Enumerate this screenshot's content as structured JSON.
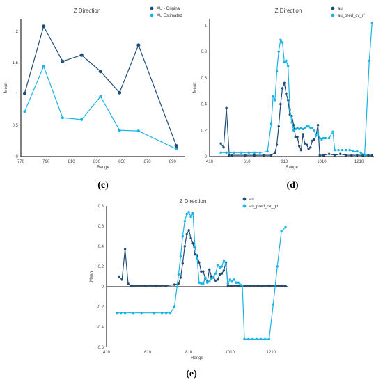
{
  "colors": {
    "dark": "#1f4e79",
    "light": "#19b3e6",
    "axis": "#000000",
    "text": "#404040"
  },
  "chart_data": [
    {
      "label": "(c)",
      "type": "line",
      "title": "Z Direction",
      "xlabel": "Range",
      "ylabel": "Mean",
      "xlim": [
        770,
        900
      ],
      "ylim": [
        0,
        2.2
      ],
      "xticks": [
        770,
        790,
        810,
        830,
        850,
        870,
        890
      ],
      "yticks": [
        0,
        0.5,
        1,
        1.5,
        2
      ],
      "ytick_labels": [
        "0",
        "0.5",
        "1",
        "1.5",
        "2"
      ],
      "legend_position": "top-right",
      "series": [
        {
          "name": "AU - Original",
          "color": "dark",
          "marker_size": 2.6,
          "points": [
            [
              773,
              1.01
            ],
            [
              788,
              2.08
            ],
            [
              803,
              1.52
            ],
            [
              818,
              1.62
            ],
            [
              833,
              1.36
            ],
            [
              848,
              1.02
            ],
            [
              863,
              1.78
            ],
            [
              893,
              0.17
            ]
          ]
        },
        {
          "name": "AU Estimated",
          "color": "light",
          "marker_size": 2.0,
          "points": [
            [
              773,
              0.72
            ],
            [
              788,
              1.44
            ],
            [
              803,
              0.62
            ],
            [
              818,
              0.59
            ],
            [
              833,
              0.96
            ],
            [
              848,
              0.42
            ],
            [
              863,
              0.41
            ],
            [
              893,
              0.12
            ]
          ]
        }
      ]
    },
    {
      "label": "(d)",
      "type": "line",
      "title": "Z Direction",
      "xlabel": "Range",
      "ylabel": "Mean",
      "xlim": [
        410,
        1290
      ],
      "ylim": [
        0,
        1.05
      ],
      "xticks": [
        410,
        610,
        810,
        1010,
        1210
      ],
      "yticks": [
        0,
        0.2,
        0.4,
        0.6,
        0.8,
        1
      ],
      "ytick_labels": [
        "0",
        "0.2",
        "0.4",
        "0.6",
        "0.8",
        "1"
      ],
      "legend_position": "top-left",
      "series": [
        {
          "name": "au",
          "color": "dark",
          "marker_size": 1.7,
          "points": [
            [
              470,
              0.1
            ],
            [
              485,
              0.07
            ],
            [
              500,
              0.37
            ],
            [
              515,
              0.01
            ],
            [
              530,
              0.01
            ],
            [
              600,
              0.01
            ],
            [
              650,
              0.01
            ],
            [
              700,
              0.01
            ],
            [
              740,
              0.01
            ],
            [
              760,
              0.03
            ],
            [
              770,
              0.09
            ],
            [
              780,
              0.23
            ],
            [
              790,
              0.4
            ],
            [
              800,
              0.52
            ],
            [
              810,
              0.56
            ],
            [
              820,
              0.48
            ],
            [
              830,
              0.43
            ],
            [
              840,
              0.32
            ],
            [
              850,
              0.31
            ],
            [
              860,
              0.24
            ],
            [
              870,
              0.15
            ],
            [
              880,
              0.15
            ],
            [
              890,
              0.08
            ],
            [
              900,
              0.05
            ],
            [
              910,
              0.17
            ],
            [
              920,
              0.1
            ],
            [
              930,
              0.09
            ],
            [
              940,
              0.06
            ],
            [
              950,
              0.07
            ],
            [
              960,
              0.12
            ],
            [
              970,
              0.13
            ],
            [
              980,
              0.16
            ],
            [
              990,
              0.24
            ],
            [
              1000,
              0.01
            ],
            [
              1020,
              0.01
            ],
            [
              1050,
              0.02
            ],
            [
              1080,
              0.01
            ],
            [
              1110,
              0.02
            ],
            [
              1140,
              0.01
            ],
            [
              1170,
              0.01
            ],
            [
              1200,
              0.01
            ],
            [
              1230,
              0.01
            ],
            [
              1260,
              0.01
            ],
            [
              1280,
              0.01
            ]
          ]
        },
        {
          "name": "au_pred_cv_rf",
          "color": "light",
          "marker_size": 1.7,
          "points": [
            [
              470,
              0.03
            ],
            [
              500,
              0.03
            ],
            [
              540,
              0.03
            ],
            [
              580,
              0.03
            ],
            [
              620,
              0.03
            ],
            [
              650,
              0.03
            ],
            [
              680,
              0.03
            ],
            [
              720,
              0.04
            ],
            [
              740,
              0.25
            ],
            [
              750,
              0.46
            ],
            [
              760,
              0.43
            ],
            [
              770,
              0.65
            ],
            [
              780,
              0.8
            ],
            [
              790,
              0.89
            ],
            [
              800,
              0.87
            ],
            [
              810,
              0.72
            ],
            [
              820,
              0.73
            ],
            [
              830,
              0.69
            ],
            [
              840,
              0.36
            ],
            [
              850,
              0.26
            ],
            [
              860,
              0.2
            ],
            [
              870,
              0.21
            ],
            [
              880,
              0.22
            ],
            [
              890,
              0.21
            ],
            [
              900,
              0.22
            ],
            [
              910,
              0.21
            ],
            [
              920,
              0.22
            ],
            [
              930,
              0.23
            ],
            [
              940,
              0.23
            ],
            [
              950,
              0.22
            ],
            [
              960,
              0.22
            ],
            [
              970,
              0.2
            ],
            [
              980,
              0.16
            ],
            [
              990,
              0.18
            ],
            [
              1000,
              0.14
            ],
            [
              1010,
              0.13
            ],
            [
              1020,
              0.14
            ],
            [
              1030,
              0.14
            ],
            [
              1050,
              0.14
            ],
            [
              1070,
              0.19
            ],
            [
              1080,
              0.05
            ],
            [
              1100,
              0.05
            ],
            [
              1120,
              0.05
            ],
            [
              1140,
              0.05
            ],
            [
              1160,
              0.05
            ],
            [
              1180,
              0.04
            ],
            [
              1200,
              0.04
            ],
            [
              1220,
              0.03
            ],
            [
              1240,
              0.01
            ],
            [
              1265,
              0.73
            ],
            [
              1280,
              1.02
            ]
          ]
        }
      ]
    },
    {
      "label": "(e)",
      "type": "line",
      "title": "Z Direction",
      "xlabel": "Range",
      "ylabel": "Mean",
      "xlim": [
        410,
        1290
      ],
      "ylim": [
        -0.6,
        0.8
      ],
      "xticks": [
        410,
        610,
        810,
        1010,
        1210
      ],
      "yticks": [
        -0.6,
        -0.4,
        -0.2,
        0,
        0.2,
        0.4,
        0.6,
        0.8
      ],
      "ytick_labels": [
        "-0.6",
        "-0.4",
        "-0.2",
        "0",
        "0.2",
        "0.4",
        "0.6",
        "0.8"
      ],
      "legend_position": "top-left",
      "series": [
        {
          "name": "au",
          "color": "dark",
          "marker_size": 1.7,
          "points": [
            [
              470,
              0.1
            ],
            [
              485,
              0.07
            ],
            [
              500,
              0.37
            ],
            [
              515,
              0.03
            ],
            [
              530,
              0.01
            ],
            [
              600,
              0.01
            ],
            [
              650,
              0.01
            ],
            [
              700,
              0.01
            ],
            [
              740,
              0.02
            ],
            [
              760,
              0.03
            ],
            [
              770,
              0.09
            ],
            [
              780,
              0.23
            ],
            [
              790,
              0.4
            ],
            [
              800,
              0.52
            ],
            [
              810,
              0.56
            ],
            [
              820,
              0.48
            ],
            [
              830,
              0.43
            ],
            [
              840,
              0.32
            ],
            [
              850,
              0.31
            ],
            [
              860,
              0.24
            ],
            [
              870,
              0.15
            ],
            [
              880,
              0.15
            ],
            [
              890,
              0.08
            ],
            [
              900,
              0.05
            ],
            [
              910,
              0.17
            ],
            [
              920,
              0.1
            ],
            [
              930,
              0.09
            ],
            [
              940,
              0.06
            ],
            [
              950,
              0.07
            ],
            [
              960,
              0.12
            ],
            [
              970,
              0.13
            ],
            [
              980,
              0.16
            ],
            [
              990,
              0.24
            ],
            [
              1000,
              0.01
            ],
            [
              1020,
              0.01
            ],
            [
              1050,
              0.01
            ],
            [
              1080,
              0.01
            ],
            [
              1110,
              0.01
            ],
            [
              1140,
              0.01
            ],
            [
              1170,
              0.01
            ],
            [
              1200,
              0.01
            ],
            [
              1230,
              0.01
            ],
            [
              1260,
              0.01
            ],
            [
              1280,
              0.01
            ]
          ]
        },
        {
          "name": "au_pred_cv_gb",
          "color": "light",
          "marker_size": 1.7,
          "points": [
            [
              460,
              -0.26
            ],
            [
              480,
              -0.26
            ],
            [
              500,
              -0.26
            ],
            [
              540,
              -0.26
            ],
            [
              580,
              -0.26
            ],
            [
              640,
              -0.26
            ],
            [
              680,
              -0.26
            ],
            [
              700,
              -0.26
            ],
            [
              720,
              -0.26
            ],
            [
              740,
              -0.2
            ],
            [
              760,
              0.12
            ],
            [
              770,
              0.3
            ],
            [
              780,
              0.5
            ],
            [
              790,
              0.65
            ],
            [
              800,
              0.72
            ],
            [
              810,
              0.74
            ],
            [
              820,
              0.69
            ],
            [
              830,
              0.73
            ],
            [
              840,
              0.39
            ],
            [
              850,
              0.28
            ],
            [
              860,
              0.04
            ],
            [
              870,
              0.03
            ],
            [
              880,
              0.03
            ],
            [
              890,
              0.09
            ],
            [
              900,
              0.04
            ],
            [
              910,
              0.05
            ],
            [
              920,
              0.08
            ],
            [
              930,
              0.1
            ],
            [
              940,
              0.13
            ],
            [
              950,
              0.21
            ],
            [
              960,
              0.19
            ],
            [
              970,
              0.2
            ],
            [
              980,
              0.26
            ],
            [
              990,
              0.22
            ],
            [
              1000,
              0.03
            ],
            [
              1010,
              0.07
            ],
            [
              1020,
              0.05
            ],
            [
              1030,
              0.07
            ],
            [
              1040,
              0.04
            ],
            [
              1050,
              0.04
            ],
            [
              1060,
              0.02
            ],
            [
              1070,
              0.01
            ],
            [
              1080,
              -0.52
            ],
            [
              1100,
              -0.52
            ],
            [
              1120,
              -0.52
            ],
            [
              1140,
              -0.52
            ],
            [
              1160,
              -0.52
            ],
            [
              1180,
              -0.52
            ],
            [
              1200,
              -0.52
            ],
            [
              1220,
              -0.18
            ],
            [
              1240,
              0.2
            ],
            [
              1260,
              0.55
            ],
            [
              1280,
              0.59
            ]
          ]
        }
      ]
    }
  ]
}
